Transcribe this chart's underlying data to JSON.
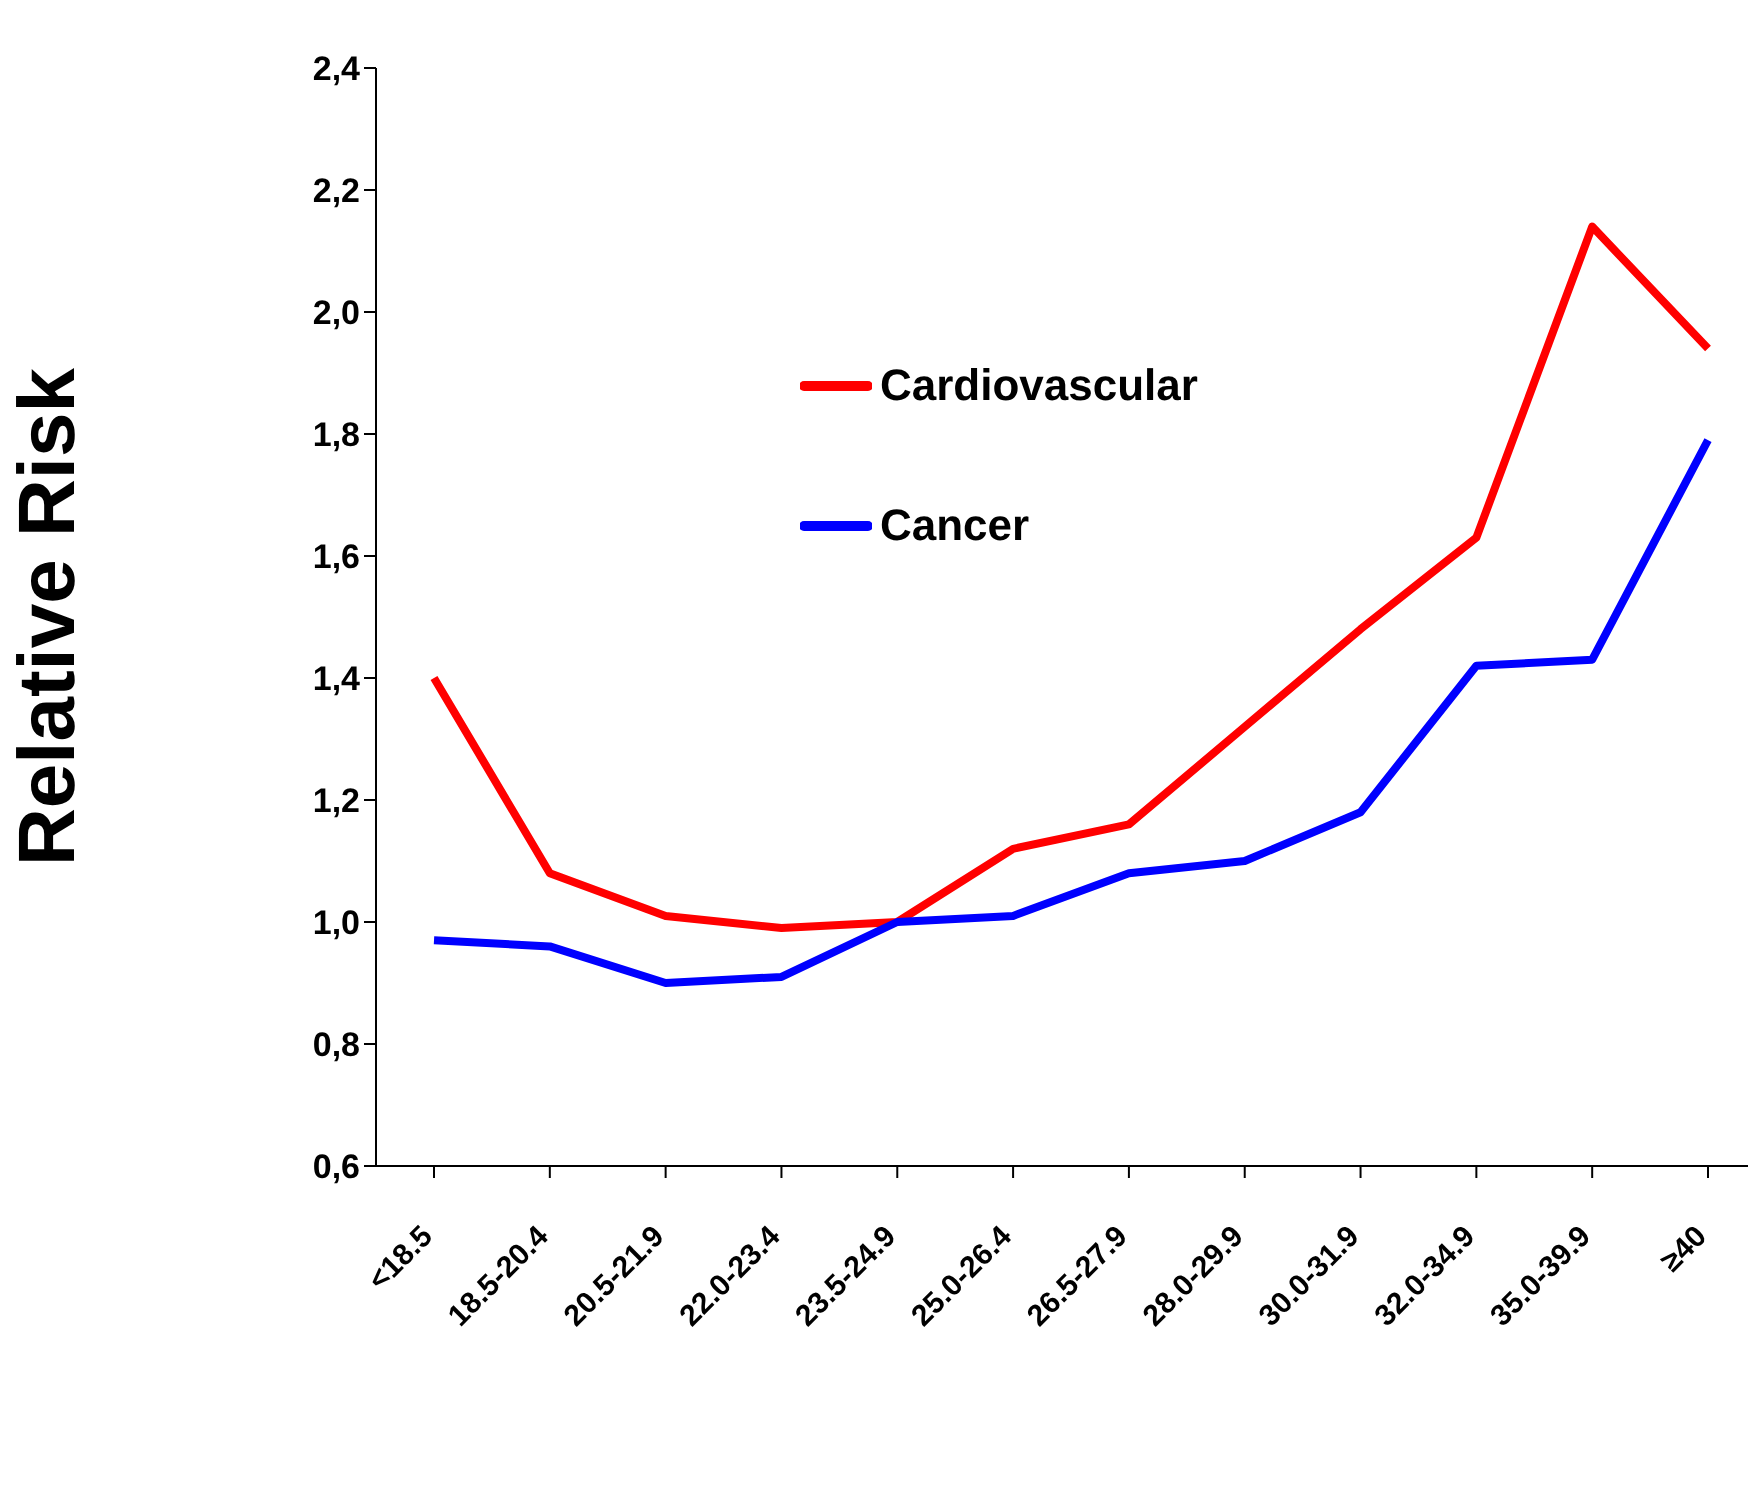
{
  "chart_data": {
    "type": "line",
    "ylabel": "Relative Risk",
    "categories": [
      "<18.5",
      "18.5-20.4",
      "20.5-21.9",
      "22.0-23.4",
      "23.5-24.9",
      "25.0-26.4",
      "26.5-27.9",
      "28.0-29.9",
      "30.0-31.9",
      "32.0-34.9",
      "35.0-39.9",
      "≥40"
    ],
    "series": [
      {
        "name": "Cardiovascular",
        "color": "#ff0000",
        "values": [
          1.4,
          1.08,
          1.01,
          0.99,
          1.0,
          1.12,
          1.16,
          1.32,
          1.48,
          1.63,
          2.14,
          1.94
        ]
      },
      {
        "name": "Cancer",
        "color": "#0000ff",
        "values": [
          0.97,
          0.96,
          0.9,
          0.91,
          1.0,
          1.01,
          1.08,
          1.1,
          1.18,
          1.42,
          1.43,
          1.79
        ]
      }
    ],
    "ylim": [
      0.6,
      2.4
    ],
    "yticks": [
      {
        "value": 0.6,
        "label": "0,6"
      },
      {
        "value": 0.8,
        "label": "0,8"
      },
      {
        "value": 1.0,
        "label": "1,0"
      },
      {
        "value": 1.2,
        "label": "1,2"
      },
      {
        "value": 1.4,
        "label": "1,4"
      },
      {
        "value": 1.6,
        "label": "1,6"
      },
      {
        "value": 1.8,
        "label": "1,8"
      },
      {
        "value": 2.0,
        "label": "2,0"
      },
      {
        "value": 2.2,
        "label": "2,2"
      },
      {
        "value": 2.4,
        "label": "2,4"
      }
    ],
    "grid": false,
    "legend": "top",
    "marker": "none",
    "line_style": "solid"
  }
}
